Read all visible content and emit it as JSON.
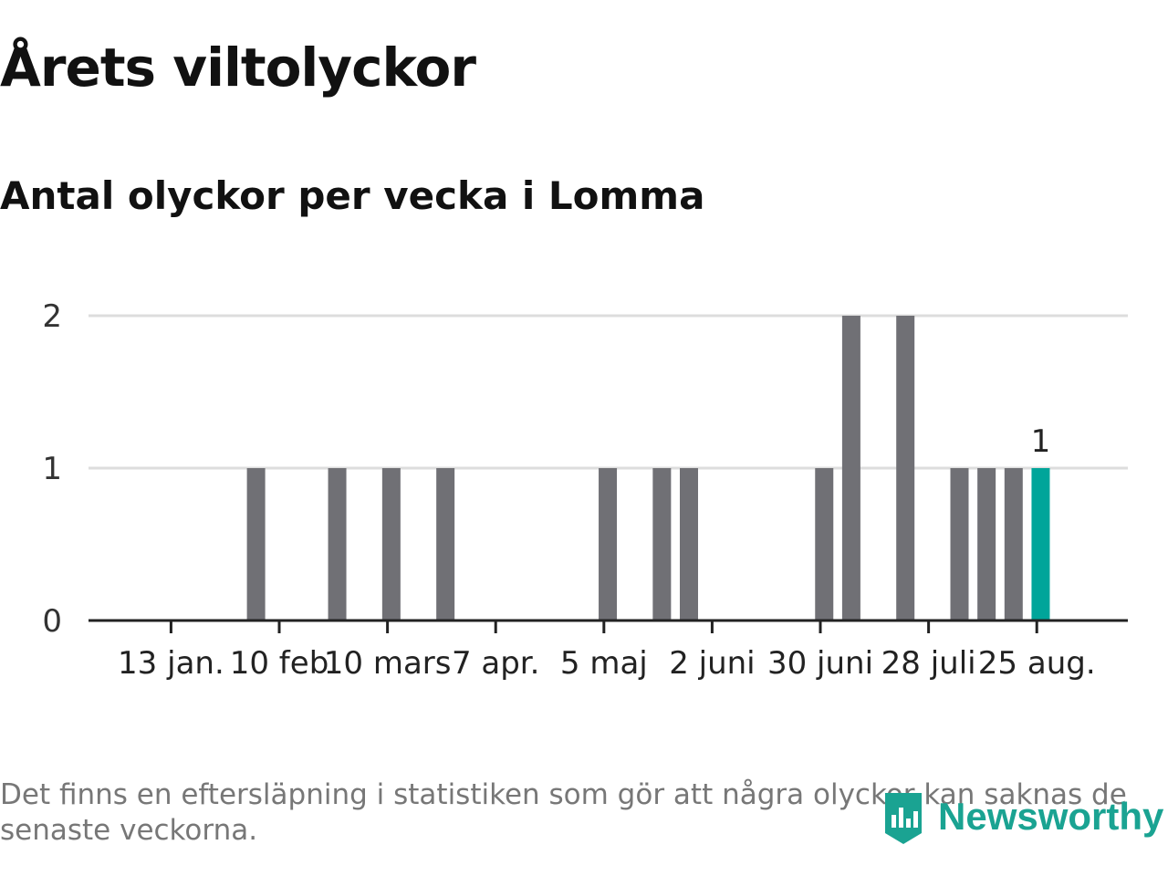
{
  "header": {
    "title": "Årets viltolyckor",
    "subtitle": "Antal olyckor per vecka i Lomma"
  },
  "footer": {
    "note": "Det finns en eftersläpning i statistiken som gör att några olyckor kan saknas de senaste veckorna.",
    "brand": "Newsworthy",
    "brand_icon": "newsworthy-logo-icon"
  },
  "colors": {
    "bar": "#707075",
    "highlight": "#00a59a",
    "grid": "#dddddd",
    "axis": "#222222",
    "brand": "#1aa392"
  },
  "chart_data": {
    "type": "bar",
    "title": "Antal olyckor per vecka i Lomma",
    "xlabel": "",
    "ylabel": "",
    "ylim": [
      0,
      2
    ],
    "yticks": [
      0,
      1,
      2
    ],
    "grid": true,
    "x_start": "2019-01-07",
    "week_days": 7,
    "xticks": [
      {
        "date": "2019-01-13",
        "label": "13 jan."
      },
      {
        "date": "2019-02-10",
        "label": "10 feb"
      },
      {
        "date": "2019-03-10",
        "label": "10 mars"
      },
      {
        "date": "2019-04-07",
        "label": "7 apr."
      },
      {
        "date": "2019-05-05",
        "label": "5 maj"
      },
      {
        "date": "2019-06-02",
        "label": "2 juni"
      },
      {
        "date": "2019-06-30",
        "label": "30 juni"
      },
      {
        "date": "2019-07-28",
        "label": "28 juli"
      },
      {
        "date": "2019-08-25",
        "label": "25 aug."
      }
    ],
    "weeks": [
      "2019-01-07",
      "2019-01-14",
      "2019-01-21",
      "2019-01-28",
      "2019-02-04",
      "2019-02-11",
      "2019-02-18",
      "2019-02-25",
      "2019-03-04",
      "2019-03-11",
      "2019-03-18",
      "2019-03-25",
      "2019-04-01",
      "2019-04-08",
      "2019-04-15",
      "2019-04-22",
      "2019-04-29",
      "2019-05-06",
      "2019-05-13",
      "2019-05-20",
      "2019-05-27",
      "2019-06-03",
      "2019-06-10",
      "2019-06-17",
      "2019-06-24",
      "2019-07-01",
      "2019-07-08",
      "2019-07-15",
      "2019-07-22",
      "2019-07-29",
      "2019-08-05",
      "2019-08-12",
      "2019-08-19",
      "2019-08-26"
    ],
    "values": [
      0,
      0,
      0,
      0,
      1,
      0,
      0,
      1,
      0,
      1,
      0,
      1,
      0,
      0,
      0,
      0,
      0,
      1,
      0,
      1,
      1,
      0,
      0,
      0,
      0,
      1,
      2,
      0,
      2,
      0,
      1,
      1,
      1,
      1
    ],
    "highlight_index": 33,
    "data_labels": [
      {
        "index": 33,
        "label": "1"
      }
    ]
  }
}
